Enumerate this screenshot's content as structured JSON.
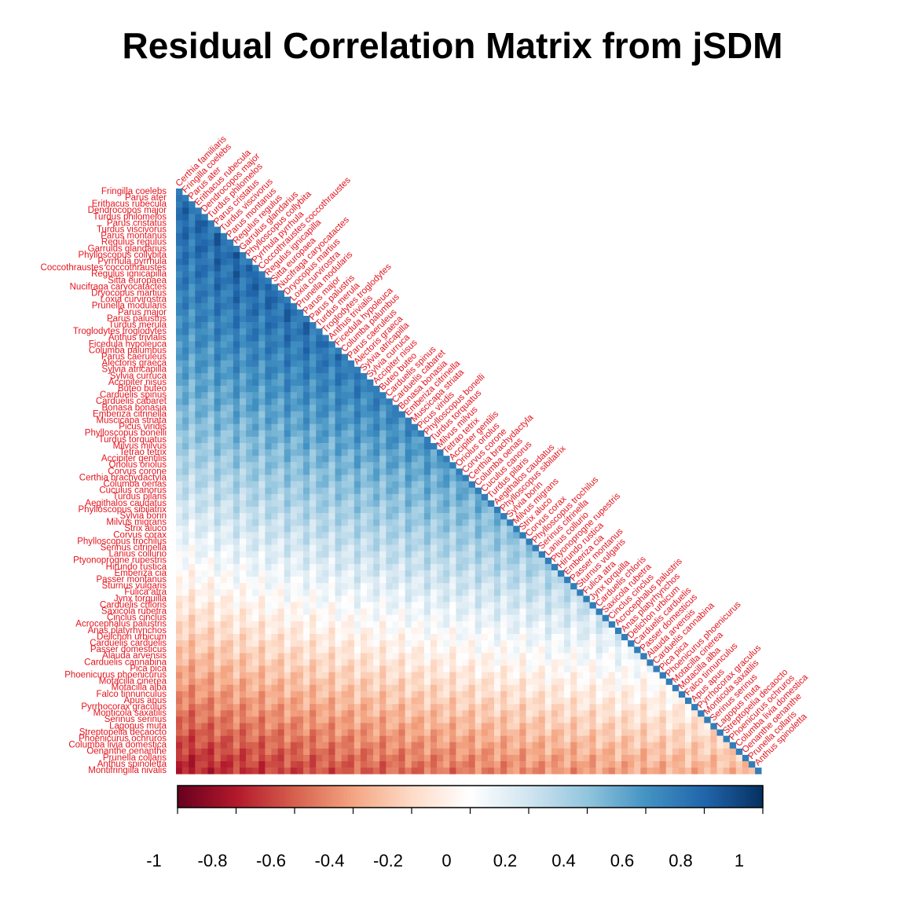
{
  "chart_data": {
    "type": "heatmap",
    "title": "Residual Correlation Matrix from jSDM",
    "layout": "lower-triangle",
    "label_color": "#e4151e",
    "species": [
      "Fringilla coelebs",
      "Parus ater",
      "Erithacus rubecula",
      "Dendrocopos major",
      "Turdus philomelos",
      "Parus cristatus",
      "Turdus viscivorus",
      "Parus montanus",
      "Regulus regulus",
      "Garrulus glandarius",
      "Phylloscopus collybita",
      "Pyrrhula pyrrhula",
      "Coccothraustes coccothraustes",
      "Regulus ignicapilla",
      "Sitta europaea",
      "Nucifraga caryocatactes",
      "Dryocopus martius",
      "Loxia curvirostra",
      "Prunella modularis",
      "Parus major",
      "Parus palustris",
      "Turdus merula",
      "Troglodytes troglodytes",
      "Anthus trivialis",
      "Ficedula hypoleuca",
      "Columba palumbus",
      "Parus caeruleus",
      "Alectoris graeca",
      "Sylvia atricapilla",
      "Sylvia curruca",
      "Accipiter nisus",
      "Buteo buteo",
      "Carduelis spinus",
      "Carduelis cabaret",
      "Bonasa bonasia",
      "Emberiza citrinella",
      "Muscicapa striata",
      "Picus viridis",
      "Phylloscopus bonelli",
      "Turdus torquatus",
      "Milvus milvus",
      "Tetrao tetrix",
      "Accipiter gentilis",
      "Oriolus oriolus",
      "Corvus corone",
      "Certhia brachydactyla",
      "Columba oenas",
      "Cuculus canorus",
      "Turdus pilaris",
      "Aegithalos caudatus",
      "Phylloscopus sibilatrix",
      "Sylvia borin",
      "Milvus migrans",
      "Strix aluco",
      "Corvus corax",
      "Phylloscopus trochilus",
      "Serinus citrinella",
      "Lanius collurio",
      "Ptyonoprogne rupestris",
      "Hirundo rustica",
      "Emberiza cia",
      "Passer montanus",
      "Sturnus vulgaris",
      "Fulica atra",
      "Jynx torquilla",
      "Carduelis chloris",
      "Saxicola rubetra",
      "Cinclus cinclus",
      "Acrocephalus palustris",
      "Anas platyrhynchos",
      "Delichon urbicum",
      "Carduelis carduelis",
      "Passer domesticus",
      "Alauda arvensis",
      "Carduelis cannabina",
      "Pica pica",
      "Phoenicurus phoenicurus",
      "Motacilla cinerea",
      "Motacilla alba",
      "Falco tinnunculus",
      "Apus apus",
      "Pyrrhocorax graculus",
      "Monticola saxatilis",
      "Serinus serinus",
      "Lagopus muta",
      "Streptopelia decaocto",
      "Phoenicurus ochruros",
      "Columba livia domestica",
      "Oenanthe oenanthe",
      "Prunella collaris",
      "Anthus spinoletta",
      "Montifringilla nivalis"
    ],
    "column_order": [
      "Certhia familiaris",
      "Fringilla coelebs",
      "Parus ater",
      "Erithacus rubecula",
      "Dendrocopos major",
      "Turdus philomelos",
      "Parus cristatus",
      "Turdus viscivorus",
      "Parus montanus",
      "Regulus regulus",
      "Garrulus glandarius",
      "Phylloscopus collybita",
      "Pyrrhula pyrrhula",
      "Coccothraustes coccothraustes",
      "Regulus ignicapilla",
      "Sitta europaea",
      "Nucifraga caryocatactes",
      "Dryocopus martius",
      "Loxia curvirostra",
      "Prunella modularis",
      "Parus major",
      "Parus palustris",
      "Turdus merula",
      "Troglodytes troglodytes",
      "Anthus trivialis",
      "Ficedula hypoleuca",
      "Columba palumbus",
      "Parus caeruleus",
      "Alectoris graeca",
      "Sylvia atricapilla",
      "Sylvia curruca",
      "Accipiter nisus",
      "Buteo buteo",
      "Carduelis spinus",
      "Carduelis cabaret",
      "Bonasa bonasia",
      "Emberiza citrinella",
      "Muscicapa striata",
      "Picus viridis",
      "Phylloscopus bonelli",
      "Turdus torquatus",
      "Milvus milvus",
      "Tetrao tetrix",
      "Accipiter gentilis",
      "Oriolus oriolus",
      "Corvus corone",
      "Certhia brachydactyla",
      "Columba oenas",
      "Cuculus canorus",
      "Turdus pilaris",
      "Aegithalos caudatus",
      "Phylloscopus sibilatrix",
      "Sylvia borin",
      "Milvus migrans",
      "Strix aluco",
      "Corvus corax",
      "Phylloscopus trochilus",
      "Serinus citrinella",
      "Lanius collurio",
      "Ptyonoprogne rupestris",
      "Hirundo rustica",
      "Emberiza cia",
      "Passer montanus",
      "Sturnus vulgaris",
      "Fulica atra",
      "Jynx torquilla",
      "Carduelis chloris",
      "Saxicola rubetra",
      "Cinclus cinclus",
      "Acrocephalus palustris",
      "Anas platyrhynchos",
      "Delichon urbicum",
      "Carduelis carduelis",
      "Passer domesticus",
      "Alauda arvensis",
      "Carduelis cannabina",
      "Pica pica",
      "Phoenicurus phoenicurus",
      "Motacilla cinerea",
      "Motacilla alba",
      "Falco tinnunculus",
      "Apus apus",
      "Pyrrhocorax graculus",
      "Monticola saxatilis",
      "Serinus serinus",
      "Lagopus muta",
      "Streptopelia decaocto",
      "Phoenicurus ochruros",
      "Columba livia domestica",
      "Oenanthe oenanthe",
      "Prunella collaris",
      "Anthus spinoletta"
    ],
    "correlation_rule": "approx. correlation(row i, column j) = 0.75 - 1.55*(i/(n-1))^1.6 + 0.5*(j/n)^0.8 with small per-column variation; diagonal (i == j) = 0.7; clipped to [-1, 1]",
    "colorbar": {
      "range": [
        -1,
        1
      ],
      "ticks": [
        -1,
        -0.8,
        -0.6,
        -0.4,
        -0.2,
        0,
        0.2,
        0.4,
        0.6,
        0.8,
        1
      ],
      "tick_labels": [
        "-1",
        "-0.8",
        "-0.6",
        "-0.4",
        "-0.2",
        "0",
        "0.2",
        "0.4",
        "0.6",
        "0.8",
        "1"
      ],
      "palette": [
        "#67001f",
        "#b2182b",
        "#d6604d",
        "#f4a582",
        "#fddbc7",
        "#ffffff",
        "#d1e5f0",
        "#92c5de",
        "#4393c3",
        "#2166ac",
        "#053061"
      ]
    }
  }
}
